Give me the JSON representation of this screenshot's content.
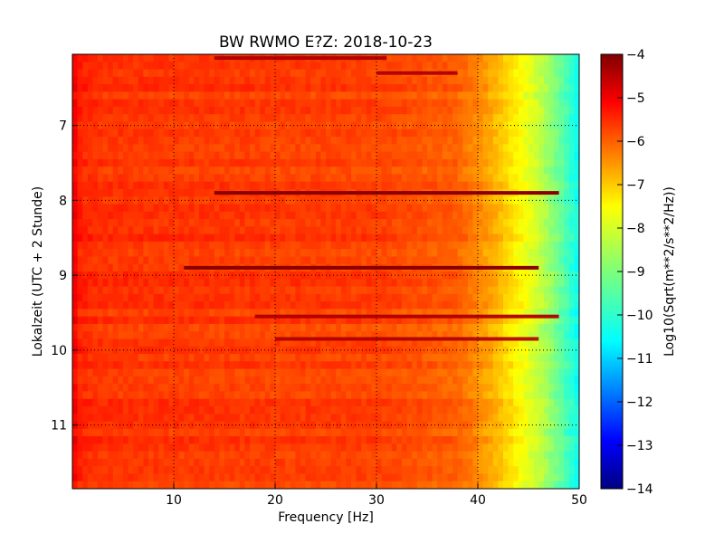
{
  "chart_data": {
    "type": "heatmap",
    "title": "BW RWMO E?Z: 2018-10-23",
    "xlabel": "Frequency [Hz]",
    "ylabel": "Lokalzeit (UTC + 2 Stunde)",
    "colorbar_label": "Log10(Sqrt(m**2/s**2/Hz))",
    "xlim": [
      0,
      50
    ],
    "ylim_hours": [
      6.05,
      11.85
    ],
    "y_inverted": true,
    "x_ticks": [
      10,
      20,
      30,
      40,
      50
    ],
    "x_tick_labels": [
      "10",
      "20",
      "30",
      "40",
      "50"
    ],
    "y_ticks": [
      7,
      8,
      9,
      10,
      11
    ],
    "y_tick_labels": [
      "7",
      "8",
      "9",
      "10",
      "11"
    ],
    "colorbar_range": [
      -14,
      -4
    ],
    "colorbar_ticks": [
      -4,
      -5,
      -6,
      -7,
      -8,
      -9,
      -10,
      -11,
      -12,
      -13,
      -14
    ],
    "colorbar_tick_labels": [
      "−4",
      "−5",
      "−6",
      "−7",
      "−8",
      "−9",
      "−10",
      "−11",
      "−12",
      "−13",
      "−14"
    ],
    "colormap": "jet",
    "grid": true,
    "grid_style": "dotted",
    "baseline_profile": {
      "freq_hz": [
        0,
        0.8,
        3,
        10,
        20,
        30,
        38,
        40,
        42,
        44,
        46,
        48,
        50
      ],
      "log_amplitude": [
        -5.1,
        -5.6,
        -5.75,
        -5.8,
        -5.85,
        -5.9,
        -6.2,
        -6.6,
        -7.1,
        -7.7,
        -8.3,
        -9.2,
        -10.2
      ]
    },
    "horizontal_bands": [
      {
        "time_h": 6.1,
        "f_from_hz": 14,
        "f_to_hz": 31,
        "strength": 0.9
      },
      {
        "time_h": 6.3,
        "f_from_hz": 30,
        "f_to_hz": 38,
        "strength": 0.9
      },
      {
        "time_h": 7.9,
        "f_from_hz": 14,
        "f_to_hz": 48,
        "strength": 1.0
      },
      {
        "time_h": 8.9,
        "f_from_hz": 11,
        "f_to_hz": 46,
        "strength": 1.0
      },
      {
        "time_h": 9.55,
        "f_from_hz": 18,
        "f_to_hz": 48,
        "strength": 0.9
      },
      {
        "time_h": 9.85,
        "f_from_hz": 20,
        "f_to_hz": 46,
        "strength": 0.8
      }
    ]
  }
}
